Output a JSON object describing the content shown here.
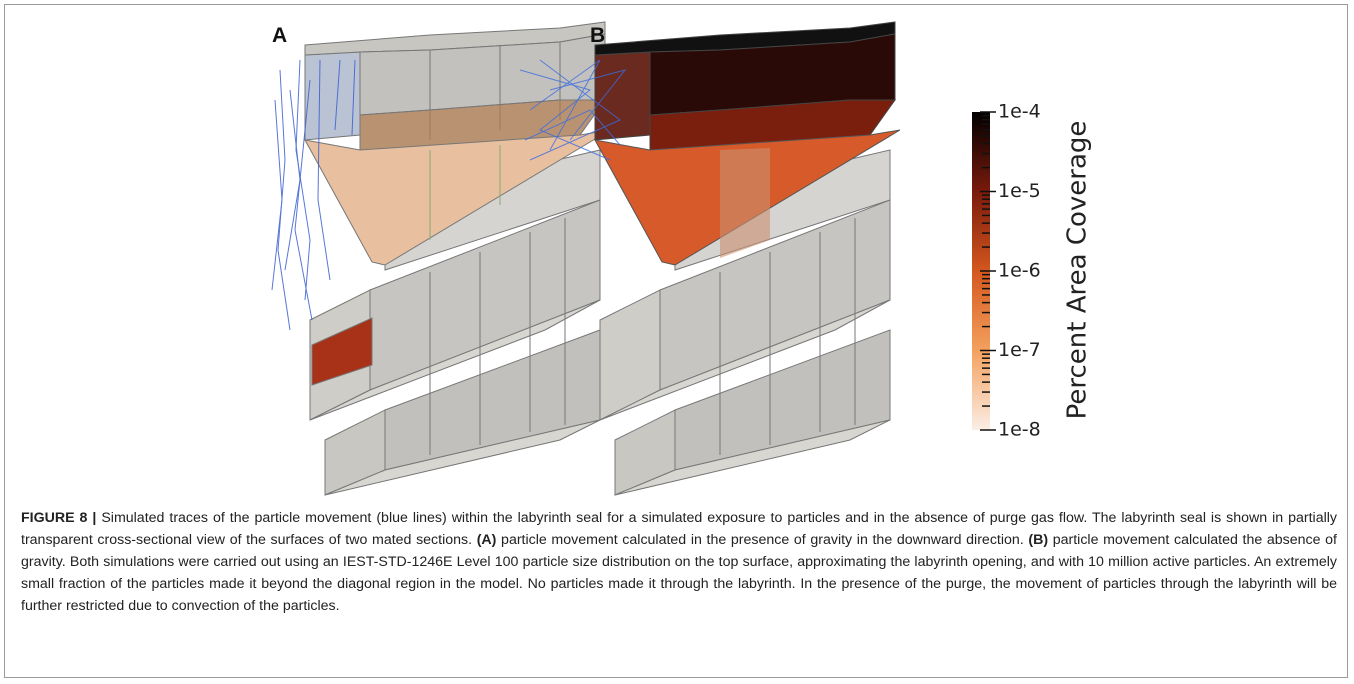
{
  "figure": {
    "panels": [
      "A",
      "B"
    ],
    "colorbar": {
      "title": "Percent Area Coverage",
      "scale": "log",
      "lim": [
        1e-08,
        0.0001
      ],
      "colors": [
        "#fbeee6",
        "#f4a15e",
        "#d4571e",
        "#7a1a0c",
        "#000000"
      ],
      "ticks": [
        {
          "value": 0.0001,
          "label": "1e-4"
        },
        {
          "value": 1e-05,
          "label": "1e-5"
        },
        {
          "value": 1e-06,
          "label": "1e-6"
        },
        {
          "value": 1e-07,
          "label": "1e-7"
        },
        {
          "value": 1e-08,
          "label": "1e-8"
        }
      ]
    },
    "caption": {
      "label": "FIGURE 8 |",
      "segments": [
        {
          "text": " Simulated traces of the particle movement (blue lines) within the labyrinth seal for a simulated exposure to particles and in the absence of purge gas flow. The labyrinth seal is shown in partially transparent cross-sectional view of the surfaces of two mated sections. ",
          "bold": false
        },
        {
          "text": "(A)",
          "bold": true
        },
        {
          "text": " particle movement calculated in the presence of gravity in the downward direction. ",
          "bold": false
        },
        {
          "text": "(B)",
          "bold": true
        },
        {
          "text": " particle movement calculated the absence of gravity. Both simulations were carried out using an IEST-STD-1246E Level 100 particle size distribution on the top surface, approximating the labyrinth opening, and with 10 million active particles. An extremely small fraction of the particles made it beyond the diagonal region in the model. No particles made it through the labyrinth. In the presence of the purge, the movement of particles through the labyrinth will be further restricted due to convection of the particles.",
          "bold": false
        }
      ]
    }
  }
}
